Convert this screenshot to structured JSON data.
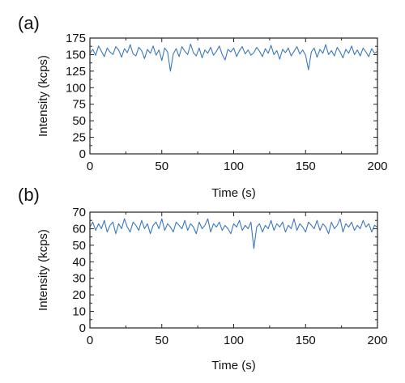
{
  "chart_data": [
    {
      "type": "line",
      "panel_label": "(a)",
      "xlabel": "Time (s)",
      "ylabel": "Intensity (kcps)",
      "xlim": [
        0,
        200
      ],
      "ylim": [
        0,
        175
      ],
      "xticks": [
        0,
        50,
        100,
        150,
        200
      ],
      "yticks": [
        0,
        25,
        50,
        75,
        100,
        125,
        150,
        175
      ],
      "grid": false,
      "series_color": "#3a78bd",
      "series": [
        {
          "x": [
            0,
            2,
            4,
            6,
            8,
            10,
            12,
            14,
            16,
            18,
            20,
            22,
            24,
            26,
            28,
            30,
            32,
            34,
            36,
            38,
            40,
            42,
            44,
            46,
            48,
            50,
            52,
            54,
            56,
            58,
            60,
            62,
            64,
            66,
            68,
            70,
            72,
            74,
            76,
            78,
            80,
            82,
            84,
            86,
            88,
            90,
            92,
            94,
            96,
            98,
            100,
            102,
            104,
            106,
            108,
            110,
            112,
            114,
            116,
            118,
            120,
            122,
            124,
            126,
            128,
            130,
            132,
            134,
            136,
            138,
            140,
            142,
            144,
            146,
            148,
            150,
            152,
            154,
            156,
            158,
            160,
            162,
            164,
            166,
            168,
            170,
            172,
            174,
            176,
            178,
            180,
            182,
            184,
            186,
            188,
            190,
            192,
            194,
            196,
            198,
            200
          ],
          "values": [
            152,
            158,
            149,
            163,
            155,
            147,
            160,
            154,
            150,
            162,
            157,
            146,
            159,
            153,
            165,
            151,
            148,
            161,
            156,
            144,
            158,
            152,
            163,
            149,
            157,
            141,
            160,
            154,
            125,
            151,
            159,
            147,
            162,
            155,
            150,
            166,
            153,
            148,
            160,
            145,
            157,
            152,
            161,
            149,
            155,
            163,
            150,
            142,
            158,
            154,
            160,
            147,
            156,
            162,
            151,
            157,
            149,
            153,
            161,
            155,
            147,
            159,
            152,
            164,
            150,
            156,
            143,
            158,
            153,
            160,
            148,
            155,
            162,
            151,
            157,
            149,
            127,
            154,
            160,
            146,
            158,
            152,
            165,
            150,
            156,
            148,
            161,
            154,
            145,
            158,
            152,
            163,
            150,
            157,
            148,
            160,
            154,
            147,
            159,
            152,
            155
          ]
        }
      ]
    },
    {
      "type": "line",
      "panel_label": "(b)",
      "xlabel": "Time (s)",
      "ylabel": "Intensity (kcps)",
      "xlim": [
        0,
        200
      ],
      "ylim": [
        0,
        70
      ],
      "xticks": [
        0,
        50,
        100,
        150,
        200
      ],
      "yticks": [
        0,
        10,
        20,
        30,
        40,
        50,
        60,
        70
      ],
      "grid": false,
      "series_color": "#3a78bd",
      "series": [
        {
          "x": [
            0,
            2,
            4,
            6,
            8,
            10,
            12,
            14,
            16,
            18,
            20,
            22,
            24,
            26,
            28,
            30,
            32,
            34,
            36,
            38,
            40,
            42,
            44,
            46,
            48,
            50,
            52,
            54,
            56,
            58,
            60,
            62,
            64,
            66,
            68,
            70,
            72,
            74,
            76,
            78,
            80,
            82,
            84,
            86,
            88,
            90,
            92,
            94,
            96,
            98,
            100,
            102,
            104,
            106,
            108,
            110,
            112,
            114,
            116,
            118,
            120,
            122,
            124,
            126,
            128,
            130,
            132,
            134,
            136,
            138,
            140,
            142,
            144,
            146,
            148,
            150,
            152,
            154,
            156,
            158,
            160,
            162,
            164,
            166,
            168,
            170,
            172,
            174,
            176,
            178,
            180,
            182,
            184,
            186,
            188,
            190,
            192,
            194,
            196,
            198,
            200
          ],
          "values": [
            61,
            64,
            59,
            63,
            60,
            65,
            58,
            62,
            64,
            57,
            63,
            60,
            66,
            61,
            58,
            64,
            62,
            59,
            65,
            60,
            63,
            57,
            62,
            64,
            60,
            66,
            59,
            63,
            61,
            58,
            64,
            62,
            60,
            65,
            59,
            63,
            61,
            57,
            64,
            60,
            62,
            66,
            58,
            63,
            61,
            64,
            59,
            62,
            60,
            57,
            63,
            61,
            65,
            59,
            62,
            60,
            64,
            48,
            61,
            63,
            58,
            62,
            60,
            65,
            59,
            63,
            61,
            64,
            58,
            62,
            60,
            66,
            59,
            63,
            61,
            58,
            64,
            62,
            60,
            65,
            59,
            63,
            61,
            57,
            64,
            60,
            62,
            66,
            58,
            63,
            61,
            64,
            59,
            62,
            60,
            65,
            61,
            63,
            58,
            62,
            61
          ]
        }
      ]
    }
  ]
}
